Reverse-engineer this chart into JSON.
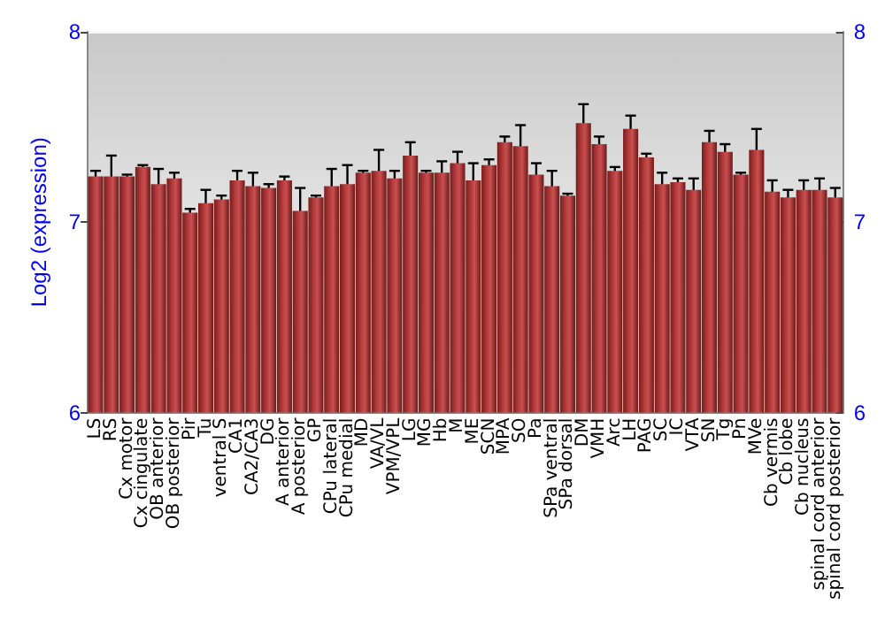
{
  "chart_data": {
    "type": "bar",
    "ylabel": "Log2 (expression)",
    "categories": [
      "LS",
      "RS",
      "Cx motor",
      "Cx cingulate",
      "OB anterior",
      "OB posterior",
      "Pir",
      "Tu",
      "ventral S",
      "CA1",
      "CA2/CA3",
      "DG",
      "A anterior",
      "A posterior",
      "GP",
      "CPu lateral",
      "CPu medial",
      "MD",
      "VA/VL",
      "VPM/VPL",
      "LG",
      "MG",
      "Hb",
      "M",
      "ME",
      "SCN",
      "MPA",
      "SO",
      "Pa",
      "SPa ventral",
      "SPa dorsal",
      "DM",
      "VMH",
      "Arc",
      "LH",
      "PAG",
      "SC",
      "IC",
      "VTA",
      "SN",
      "Tg",
      "Pn",
      "MVe",
      "Cb vermis",
      "Cb lobe",
      "Cb nucleus",
      "spinal cord anterior",
      "spinal cord posterior"
    ],
    "values": [
      7.24,
      7.24,
      7.24,
      7.29,
      7.2,
      7.23,
      7.05,
      7.1,
      7.12,
      7.22,
      7.19,
      7.18,
      7.22,
      7.06,
      7.13,
      7.19,
      7.2,
      7.26,
      7.27,
      7.23,
      7.35,
      7.26,
      7.26,
      7.31,
      7.22,
      7.3,
      7.42,
      7.4,
      7.25,
      7.19,
      7.14,
      7.52,
      7.41,
      7.27,
      7.49,
      7.34,
      7.2,
      7.21,
      7.17,
      7.42,
      7.37,
      7.25,
      7.38,
      7.16,
      7.13,
      7.17,
      7.17,
      7.13
    ],
    "errors": [
      0.03,
      0.11,
      0.01,
      0.01,
      0.08,
      0.03,
      0.02,
      0.07,
      0.02,
      0.05,
      0.07,
      0.02,
      0.02,
      0.12,
      0.01,
      0.09,
      0.1,
      0.01,
      0.11,
      0.04,
      0.07,
      0.01,
      0.06,
      0.06,
      0.09,
      0.03,
      0.03,
      0.11,
      0.06,
      0.08,
      0.01,
      0.1,
      0.04,
      0.02,
      0.07,
      0.02,
      0.06,
      0.02,
      0.06,
      0.06,
      0.04,
      0.01,
      0.11,
      0.06,
      0.04,
      0.05,
      0.06,
      0.05
    ],
    "color": "#b23a3a",
    "ylim": [
      6,
      8
    ],
    "yticks": [
      6,
      7,
      8
    ],
    "y2lim": [
      6,
      8
    ],
    "y2ticks": [
      6,
      7,
      8
    ],
    "grid": "y"
  }
}
